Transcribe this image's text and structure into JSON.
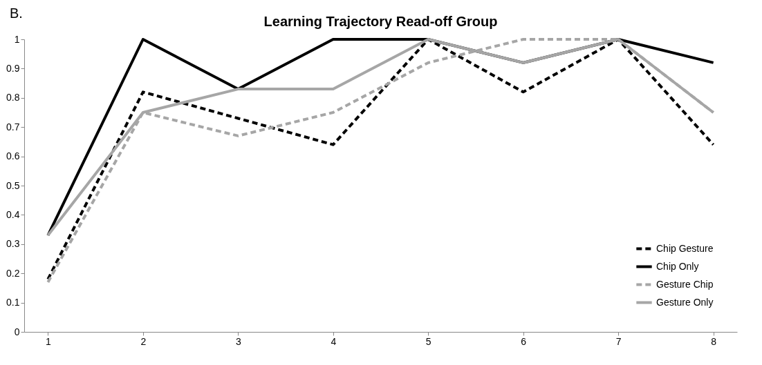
{
  "chart_data": {
    "type": "line",
    "title": "Learning Trajectory Read-off Group",
    "annotations": [
      "B."
    ],
    "categories": [
      "1",
      "2",
      "3",
      "4",
      "5",
      "6",
      "7",
      "8"
    ],
    "series": [
      {
        "name": "Chip Gesture",
        "color": "#000000",
        "line_style": "dashed",
        "values": [
          0.18,
          0.82,
          0.73,
          0.64,
          1,
          0.82,
          1,
          0.64
        ]
      },
      {
        "name": "Chip Only",
        "color": "#000000",
        "line_style": "solid",
        "values": [
          0.33,
          1,
          0.83,
          1,
          1,
          0.92,
          1,
          0.92
        ]
      },
      {
        "name": "Gesture Chip",
        "color": "#a6a6a6",
        "line_style": "dashed",
        "values": [
          0.17,
          0.75,
          0.67,
          0.75,
          0.92,
          1,
          1,
          0.75
        ]
      },
      {
        "name": "Gesture Only",
        "color": "#a6a6a6",
        "line_style": "solid",
        "values": [
          0.33,
          0.75,
          0.83,
          0.83,
          1,
          0.92,
          1,
          0.75
        ]
      }
    ],
    "ylim": [
      0,
      1
    ],
    "yticks": [
      0,
      0.1,
      0.2,
      0.3,
      0.4,
      0.5,
      0.6,
      0.7,
      0.8,
      0.9,
      1
    ],
    "grid": false,
    "legend": "bottom right",
    "marker": "none"
  }
}
